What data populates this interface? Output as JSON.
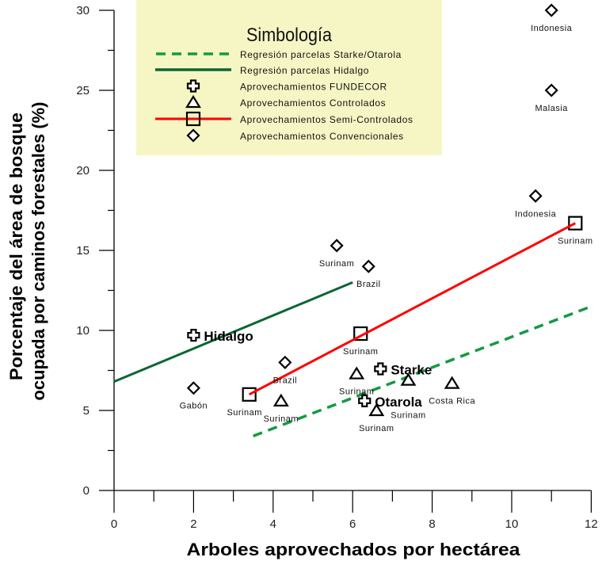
{
  "chart_data": {
    "type": "scatter",
    "title": "",
    "xlabel": "Arboles aprovechados por hectárea",
    "ylabel": [
      "Porcentaje del área de bosque",
      "ocupada por caminos forestales (%)"
    ],
    "xlim": [
      0,
      12
    ],
    "ylim": [
      0,
      30
    ],
    "xticks": [
      0,
      2,
      4,
      6,
      8,
      10,
      12
    ],
    "xminor_ticks": [
      1,
      3,
      5,
      7,
      9,
      11
    ],
    "yticks": [
      0,
      5,
      10,
      15,
      20,
      25,
      30
    ],
    "yminor_ticks": [
      2.5,
      7.5,
      12.5,
      17.5,
      22.5,
      27.5
    ],
    "grid": false,
    "legend": {
      "title": "Simbología",
      "placement": "top-left",
      "background": "#f6f6c4",
      "entries": [
        {
          "label": "Regresión parcelas Starke/Otarola",
          "symbol": "dashed-line",
          "color": "#129b42"
        },
        {
          "label": "Regresión parcelas Hidalgo",
          "symbol": "solid-line",
          "color": "#0b6633"
        },
        {
          "label": "Aprovechamientos FUNDECOR",
          "symbol": "cross"
        },
        {
          "label": "Aprovechamientos Controlados",
          "symbol": "triangle"
        },
        {
          "label": "Aprovechamientos Semi-Controlados",
          "symbol": "square-with-line",
          "color": "#ff0000"
        },
        {
          "label": "Aprovechamientos Convencionales",
          "symbol": "diamond"
        }
      ]
    },
    "regression_lines": [
      {
        "name": "Regresión parcelas Starke/Otarola",
        "style": "dashed",
        "color": "#129b42",
        "points": [
          [
            3.5,
            3.4
          ],
          [
            12,
            11.5
          ]
        ]
      },
      {
        "name": "Regresión parcelas Hidalgo",
        "style": "solid",
        "color": "#0b6633",
        "points": [
          [
            0,
            6.8
          ],
          [
            6,
            13.0
          ]
        ]
      },
      {
        "name": "Aprovechamientos Semi-Controlados",
        "style": "solid",
        "color": "#ff0000",
        "points": [
          [
            3.4,
            6.0
          ],
          [
            11.6,
            16.7
          ]
        ]
      }
    ],
    "series": [
      {
        "name": "Aprovechamientos FUNDECOR",
        "marker": "cross",
        "label_style": "bold",
        "points": [
          {
            "x": 2.0,
            "y": 9.7,
            "label": "Hidalgo",
            "placement": "right"
          },
          {
            "x": 6.7,
            "y": 7.6,
            "label": "Starke",
            "placement": "right"
          },
          {
            "x": 6.3,
            "y": 5.6,
            "label": "Otarola",
            "placement": "right"
          }
        ]
      },
      {
        "name": "Aprovechamientos Controlados",
        "marker": "triangle",
        "label_style": "normal",
        "points": [
          {
            "x": 4.2,
            "y": 5.6,
            "label": "Surinam",
            "placement": "below"
          },
          {
            "x": 6.1,
            "y": 7.3,
            "label": "Surinam",
            "placement": "below"
          },
          {
            "x": 7.4,
            "y": 6.9,
            "label": "Surinam",
            "placement": "below"
          },
          {
            "x": 8.5,
            "y": 6.7,
            "label": "Costa Rica",
            "placement": "below"
          },
          {
            "x": 6.6,
            "y": 5.0,
            "label": "Surinam",
            "placement": "below"
          }
        ]
      },
      {
        "name": "Aprovechamientos Semi-Controlados",
        "marker": "square",
        "label_style": "normal",
        "points": [
          {
            "x": 3.4,
            "y": 6.0,
            "label": "Surinam",
            "placement": "below"
          },
          {
            "x": 6.2,
            "y": 9.8,
            "label": "Surinam",
            "placement": "below"
          },
          {
            "x": 11.6,
            "y": 16.7,
            "label": "Surinam",
            "placement": "below"
          }
        ]
      },
      {
        "name": "Aprovechamientos Convencionales",
        "marker": "diamond",
        "label_style": "normal",
        "points": [
          {
            "x": 11.0,
            "y": 30.0,
            "label": "Indonesia",
            "placement": "below"
          },
          {
            "x": 11.0,
            "y": 25.0,
            "label": "Malasia",
            "placement": "below"
          },
          {
            "x": 10.6,
            "y": 18.4,
            "label": "Indonesia",
            "placement": "below"
          },
          {
            "x": 5.6,
            "y": 15.3,
            "label": "Surinam",
            "placement": "below"
          },
          {
            "x": 6.4,
            "y": 14.0,
            "label": "Brazil",
            "placement": "below"
          },
          {
            "x": 4.3,
            "y": 8.0,
            "label": "Brazil",
            "placement": "below"
          },
          {
            "x": 2.0,
            "y": 6.4,
            "label": "Gabón",
            "placement": "below"
          }
        ]
      }
    ]
  }
}
